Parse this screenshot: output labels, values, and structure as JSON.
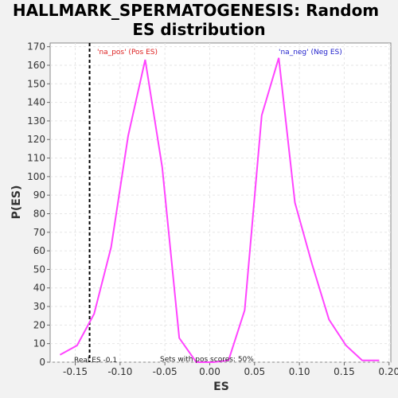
{
  "chart_data": {
    "type": "line",
    "title_line1": "HALLMARK_SPERMATOGENESIS: Random",
    "title_line2": "ES distribution",
    "xlabel": "ES",
    "ylabel": "P(ES)",
    "xlim": [
      -0.178,
      0.202
    ],
    "ylim": [
      0,
      172
    ],
    "x_ticks": [
      "-0.15",
      "-0.10",
      "-0.05",
      "0.00",
      "0.05",
      "0.10",
      "0.15",
      "0.20"
    ],
    "x_tick_values": [
      -0.15,
      -0.1,
      -0.05,
      0.0,
      0.05,
      0.1,
      0.15,
      0.2
    ],
    "y_ticks": [
      0,
      10,
      20,
      30,
      40,
      50,
      60,
      70,
      80,
      90,
      100,
      110,
      120,
      130,
      140,
      150,
      160,
      170
    ],
    "grid": true,
    "series": [
      {
        "color": "#ff44ff",
        "x": [
          -0.167,
          -0.148,
          -0.129,
          -0.11,
          -0.091,
          -0.072,
          -0.053,
          -0.034,
          -0.015,
          0.004,
          0.021,
          0.039,
          0.058,
          0.077,
          0.095,
          0.114,
          0.133,
          0.152,
          0.17,
          0.189
        ],
        "y": [
          4,
          9,
          26,
          62,
          122,
          163,
          105,
          13,
          0,
          0,
          1,
          28,
          133,
          164,
          86,
          53,
          23,
          9,
          1,
          1
        ]
      }
    ],
    "real_es": -0.134,
    "real_es_label": "Real ES -0.1",
    "pos_label": "'na_pos' (Pos ES)",
    "neg_label": "'na_neg' (Neg ES)",
    "pos_color": "#dd2222",
    "neg_color": "#2222cc",
    "sets_note": "Sets with pos scores: 50%"
  }
}
